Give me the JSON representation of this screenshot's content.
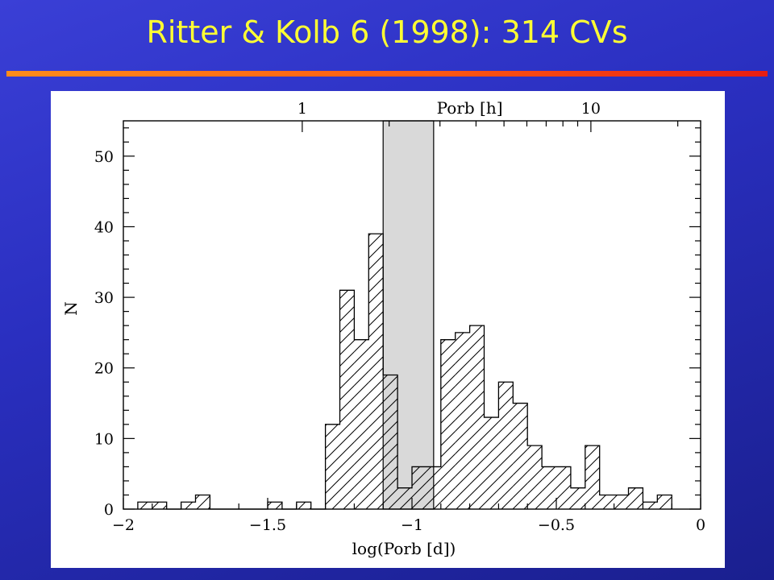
{
  "slide": {
    "title": "Ritter & Kolb 6 (1998): 314 CVs"
  },
  "chart_data": {
    "type": "bar",
    "histogram": true,
    "title": "",
    "xlabel": "log(Porb [d])",
    "ylabel": "N",
    "xlim": [
      -2,
      0
    ],
    "ylim": [
      0,
      55
    ],
    "x_ticks": [
      -2,
      -1.5,
      -1,
      -0.5,
      0
    ],
    "x_tick_labels": [
      "−2",
      "−1.5",
      "−1",
      "−0.5",
      "0"
    ],
    "y_ticks": [
      0,
      10,
      20,
      30,
      40,
      50
    ],
    "y_tick_labels": [
      "0",
      "10",
      "20",
      "30",
      "40",
      "50"
    ],
    "top_axis": {
      "label": "Porb [h]",
      "ticks_hours": [
        1,
        10
      ],
      "tick_labels": [
        "1",
        "10"
      ]
    },
    "bin_width": 0.05,
    "bin_starts": [
      -1.95,
      -1.9,
      -1.85,
      -1.8,
      -1.75,
      -1.7,
      -1.65,
      -1.6,
      -1.55,
      -1.5,
      -1.45,
      -1.4,
      -1.35,
      -1.3,
      -1.25,
      -1.2,
      -1.15,
      -1.1,
      -1.05,
      -1.0,
      -0.95,
      -0.9,
      -0.85,
      -0.8,
      -0.75,
      -0.7,
      -0.65,
      -0.6,
      -0.55,
      -0.5,
      -0.45,
      -0.4,
      -0.35,
      -0.3,
      -0.25,
      -0.2,
      -0.15
    ],
    "values": [
      1,
      1,
      0,
      1,
      2,
      0,
      0,
      0,
      0,
      1,
      0,
      1,
      0,
      12,
      31,
      24,
      39,
      19,
      3,
      6,
      6,
      24,
      25,
      26,
      13,
      18,
      15,
      9,
      6,
      6,
      3,
      9,
      2,
      2,
      3,
      1,
      2
    ],
    "period_gap": {
      "x_range": [
        -1.1,
        -0.925
      ],
      "fill": "#d9d9d9"
    },
    "hatch": "diagonal",
    "grid": false,
    "legend": "none"
  }
}
